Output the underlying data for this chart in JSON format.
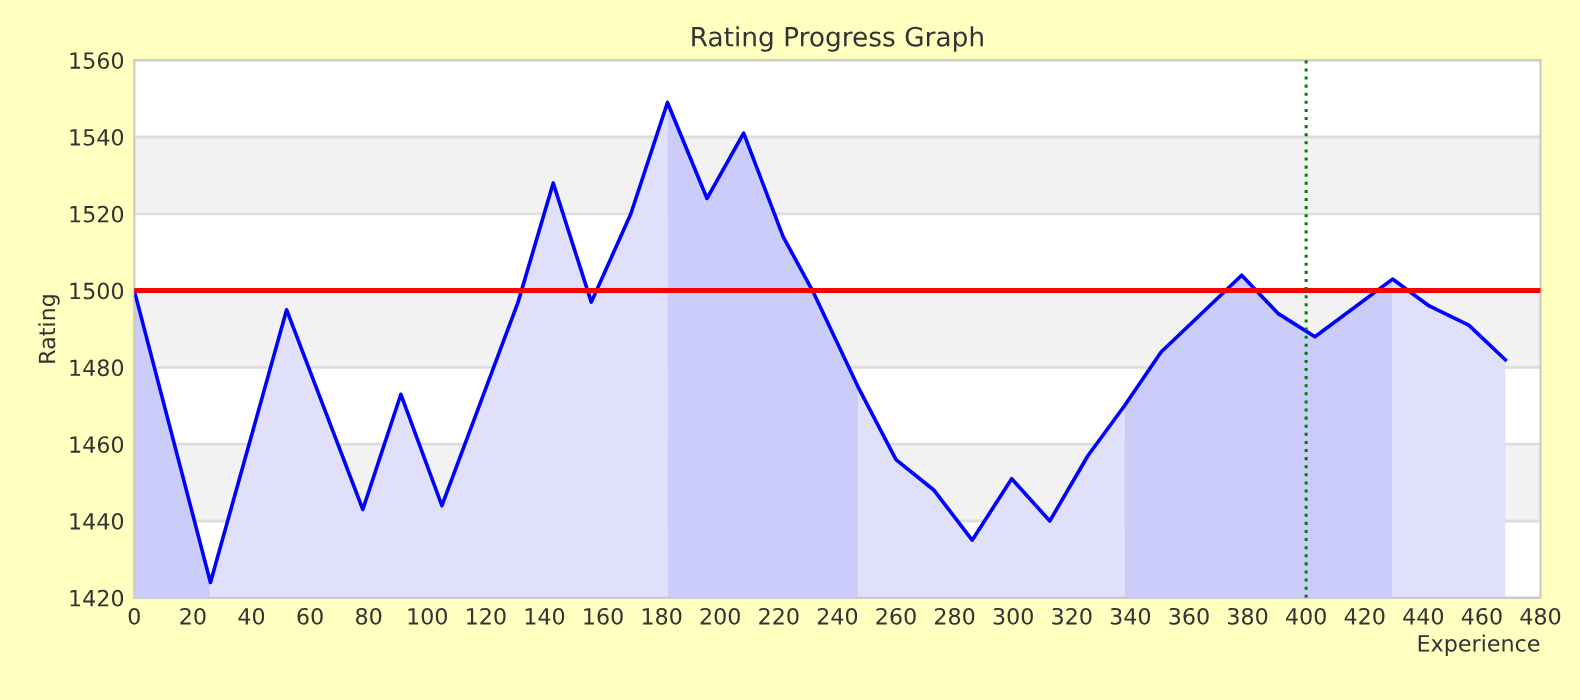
{
  "chart_data": {
    "type": "line",
    "title": "Rating Progress Graph",
    "xlabel": "Experience",
    "ylabel": "Rating",
    "series": [
      {
        "type": "area",
        "color": "#ccccfa",
        "x": [
          0,
          26
        ],
        "values": [
          1500,
          1424
        ]
      },
      {
        "type": "area",
        "color": "#e0e0fa",
        "x": [
          26,
          52,
          78,
          91,
          105,
          131,
          143,
          156,
          169.5,
          182
        ],
        "values": [
          1424,
          1495,
          1443,
          1473,
          1444,
          1497,
          1528,
          1497,
          1520,
          1549
        ]
      },
      {
        "type": "area",
        "color": "#ccccfa",
        "x": [
          182,
          195.5,
          208,
          221.5,
          231.5,
          247
        ],
        "values": [
          1549,
          1524,
          1541,
          1514,
          1500,
          1475
        ]
      },
      {
        "type": "area",
        "color": "#e0e0fa",
        "x": [
          247,
          260,
          273,
          286,
          299.5,
          312.5,
          325.5,
          338
        ],
        "values": [
          1475,
          1456,
          1448,
          1435,
          1451,
          1440,
          1457,
          1470
        ]
      },
      {
        "type": "area",
        "color": "#ccccfa",
        "x": [
          338,
          350.5,
          378,
          390.5,
          403,
          429.5
        ],
        "values": [
          1470,
          1484,
          1504,
          1494,
          1488,
          1503
        ]
      },
      {
        "type": "area",
        "color": "#e0e0fa",
        "x": [
          429.5,
          442,
          455.5,
          468
        ],
        "values": [
          1503,
          1496,
          1491,
          1482
        ]
      },
      {
        "color": "#0000ff",
        "x": [
          0,
          26,
          52,
          78,
          91,
          105,
          131,
          143,
          156,
          169.5,
          182,
          195.5,
          208,
          221.5,
          231.5,
          247,
          260,
          273,
          286,
          299.5,
          312.5,
          325.5,
          338,
          350.5,
          378,
          390.5,
          403,
          429.5,
          442,
          455.5,
          468
        ],
        "values": [
          1500,
          1424,
          1495,
          1443,
          1473,
          1444,
          1497,
          1528,
          1497,
          1520,
          1549,
          1524,
          1541,
          1514,
          1500,
          1475,
          1456,
          1448,
          1435,
          1451,
          1440,
          1457,
          1470,
          1484,
          1504,
          1494,
          1488,
          1503,
          1496,
          1491,
          1482
        ]
      }
    ],
    "xlim": [
      0,
      480
    ],
    "xticks": [
      0,
      20,
      40,
      60,
      80,
      100,
      120,
      140,
      160,
      180,
      200,
      220,
      240,
      260,
      280,
      300,
      320,
      340,
      360,
      380,
      400,
      420,
      440,
      460,
      480
    ],
    "ylim": [
      1420,
      1560
    ],
    "yticks": [
      1420,
      1440,
      1460,
      1480,
      1500,
      1520,
      1540,
      1560
    ],
    "bands": [
      {
        "axis": "y",
        "from": 1440,
        "to": 1460,
        "color": "#f2f2f2"
      },
      {
        "axis": "y",
        "from": 1480,
        "to": 1500,
        "color": "#f2f2f2"
      },
      {
        "axis": "y",
        "from": 1520,
        "to": 1540,
        "color": "#f2f2f2"
      }
    ],
    "ref_lines": [
      {
        "axis": "y",
        "value": 1500,
        "color": "#ff0000",
        "line_style": "solid"
      },
      {
        "axis": "x",
        "value": 400,
        "color": "#008000",
        "line_style": "dotted"
      }
    ],
    "grid": "y",
    "legend": false,
    "marker": "none",
    "line_style": "solid"
  }
}
